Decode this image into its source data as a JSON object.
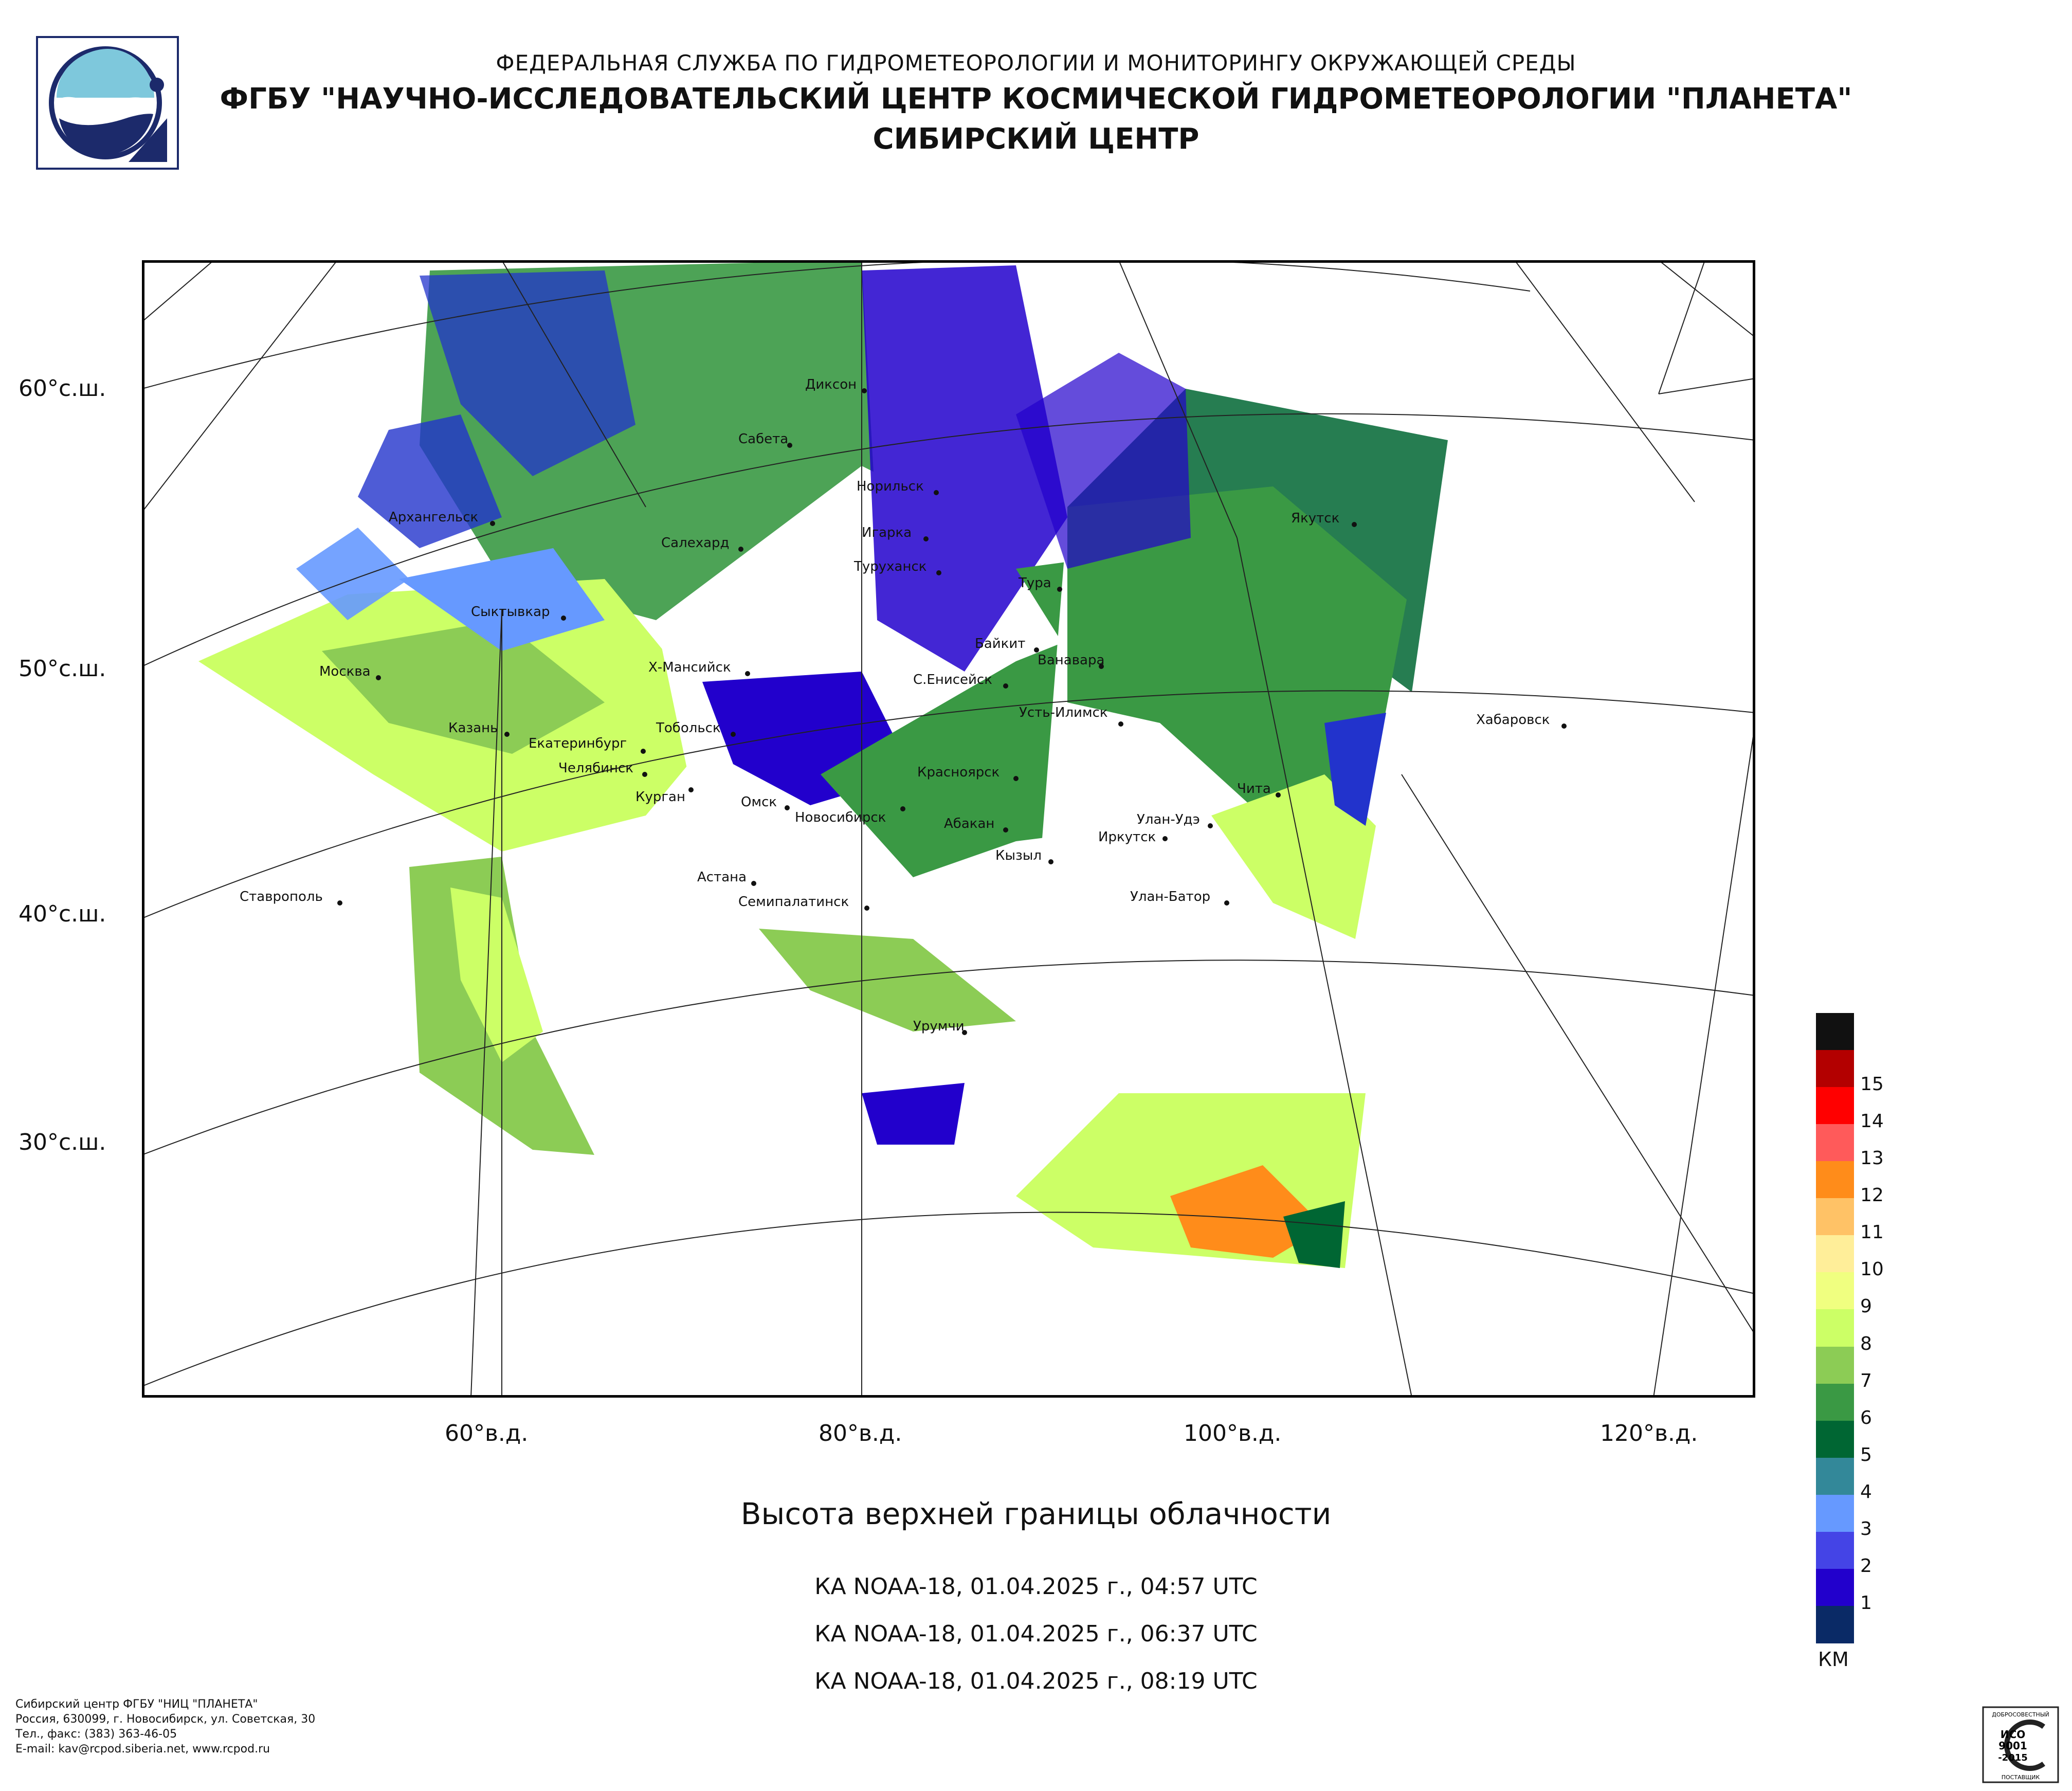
{
  "header": {
    "line1": "ФЕДЕРАЛЬНАЯ СЛУЖБА ПО ГИДРОМЕТЕОРОЛОГИИ И МОНИТОРИНГУ ОКРУЖАЮЩЕЙ СРЕДЫ",
    "line2": "ФГБУ \"НАУЧНО-ИССЛЕДОВАТЕЛЬСКИЙ ЦЕНТР КОСМИЧЕСКОЙ ГИДРОМЕТЕОРОЛОГИИ \"ПЛАНЕТА\"",
    "line3": "СИБИРСКИЙ ЦЕНТР"
  },
  "map": {
    "title": "Высота верхней границы облачности",
    "lat_labels": [
      "60°с.ш.",
      "50°с.ш.",
      "40°с.ш.",
      "30°с.ш."
    ],
    "lon_labels": [
      "60°в.д.",
      "80°в.д.",
      "100°в.д.",
      "120°в.д."
    ],
    "cities": [
      "Диксон",
      "Сабета",
      "Норильск",
      "Архангельск",
      "Игарка",
      "Салехард",
      "Туруханск",
      "Якутск",
      "Тура",
      "Сыктывкар",
      "Байкит",
      "Ванавара",
      "Москва",
      "Х-Мансийск",
      "С.Енисейск",
      "Усть-Илимск",
      "Казань",
      "Тобольск",
      "Хабаровск",
      "Екатеринбург",
      "Челябинск",
      "Курган",
      "Омск",
      "Новосибирск",
      "Красноярск",
      "Чита",
      "Абакан",
      "Улан-Удэ",
      "Иркутск",
      "Кызыл",
      "Астана",
      "Ставрополь",
      "Семипалатинск",
      "Улан-Батор",
      "Урумчи"
    ]
  },
  "passes": [
    "КА NOAA-18, 01.04.2025 г., 04:57 UTC",
    "КА NOAA-18, 01.04.2025 г., 06:37 UTC",
    "КА NOAA-18, 01.04.2025 г., 08:19 UTC"
  ],
  "legend": {
    "units": "КМ",
    "levels": [
      {
        "label": "",
        "color": "#111111"
      },
      {
        "label": "15",
        "color": "#b30000"
      },
      {
        "label": "14",
        "color": "#ff0000"
      },
      {
        "label": "13",
        "color": "#ff5a5a"
      },
      {
        "label": "12",
        "color": "#ff8c1a"
      },
      {
        "label": "11",
        "color": "#ffc266"
      },
      {
        "label": "10",
        "color": "#ffee99"
      },
      {
        "label": "9",
        "color": "#f0ff80"
      },
      {
        "label": "8",
        "color": "#ccff66"
      },
      {
        "label": "7",
        "color": "#8ccc55"
      },
      {
        "label": "6",
        "color": "#3a9944"
      },
      {
        "label": "5",
        "color": "#006633"
      },
      {
        "label": "4",
        "color": "#338899"
      },
      {
        "label": "3",
        "color": "#6699ff"
      },
      {
        "label": "2",
        "color": "#4444e6"
      },
      {
        "label": "1",
        "color": "#2200cc"
      },
      {
        "label": "",
        "color": "#0a2a66"
      }
    ]
  },
  "footer": {
    "line1": "Сибирский центр ФГБУ \"НИЦ \"ПЛАНЕТА\"",
    "line2": "Россия, 630099, г. Новосибирск, ул. Советская, 30",
    "line3": "Тел., факс: (383) 363-46-05",
    "line4": "E-mail: kav@rcpod.siberia.net, www.rcpod.ru"
  },
  "cert": {
    "top": "ДОБРОСОВЕСТНЫЙ",
    "mid1": "ИСО",
    "mid2": "9001",
    "mid3": "-2015",
    "bottom": "ПОСТАВЩИК"
  }
}
